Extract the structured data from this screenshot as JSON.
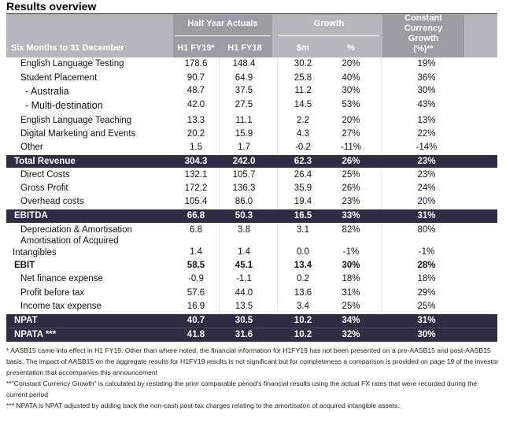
{
  "title": "Results overview",
  "header": {
    "period_label": "Six Months to 31 December",
    "group_half_year": "Half Year Actuals",
    "group_growth": "Growth",
    "group_constant_currency": [
      "Constant",
      "Currency",
      "Growth",
      "(%)**"
    ],
    "col_h1fy19": "H1 FY19*",
    "col_h1fy18": "H1 FY18",
    "col_dollar": "$m",
    "col_pct": "%"
  },
  "rows": [
    {
      "label": "English Language Testing",
      "h1fy19": "178.6",
      "h1fy18": "148.4",
      "growth_m": "30.2",
      "growth_pct": "20%",
      "cc_growth": "19%"
    },
    {
      "label": "Student Placement",
      "h1fy19": "90.7",
      "h1fy18": "64.9",
      "growth_m": "25.8",
      "growth_pct": "40%",
      "cc_growth": "36%"
    },
    {
      "label": "- Australia",
      "h1fy19": "48.7",
      "h1fy18": "37.5",
      "growth_m": "11.2",
      "growth_pct": "30%",
      "cc_growth": "30%"
    },
    {
      "label": "- Multi-destination",
      "h1fy19": "42.0",
      "h1fy18": "27.5",
      "growth_m": "14.5",
      "growth_pct": "53%",
      "cc_growth": "43%"
    },
    {
      "label": "English Language Teaching",
      "h1fy19": "13.3",
      "h1fy18": "11.1",
      "growth_m": "2.2",
      "growth_pct": "20%",
      "cc_growth": "13%"
    },
    {
      "label": "Digital Marketing and Events",
      "h1fy19": "20.2",
      "h1fy18": "15.9",
      "growth_m": "4.3",
      "growth_pct": "27%",
      "cc_growth": "22%"
    },
    {
      "label": "Other",
      "h1fy19": "1.5",
      "h1fy18": "1.7",
      "growth_m": "-0.2",
      "growth_pct": "-11%",
      "cc_growth": "-14%"
    },
    {
      "label": "Total Revenue",
      "h1fy19": "304.3",
      "h1fy18": "242.0",
      "growth_m": "62.3",
      "growth_pct": "26%",
      "cc_growth": "23%"
    },
    {
      "label": "Direct Costs",
      "h1fy19": "132.1",
      "h1fy18": "105.7",
      "growth_m": "26.4",
      "growth_pct": "25%",
      "cc_growth": "23%"
    },
    {
      "label": "Gross Profit",
      "h1fy19": "172.2",
      "h1fy18": "136.3",
      "growth_m": "35.9",
      "growth_pct": "26%",
      "cc_growth": "24%"
    },
    {
      "label": "Overhead costs",
      "h1fy19": "105.4",
      "h1fy18": "86.0",
      "growth_m": "19.4",
      "growth_pct": "23%",
      "cc_growth": "20%"
    },
    {
      "label": "EBITDA",
      "h1fy19": "66.8",
      "h1fy18": "50.3",
      "growth_m": "16.5",
      "growth_pct": "33%",
      "cc_growth": "31%"
    },
    {
      "label": "Depreciation & Amortisation",
      "h1fy19": "6.8",
      "h1fy18": "3.8",
      "growth_m": "3.1",
      "growth_pct": "82%",
      "cc_growth": "80%"
    },
    {
      "label_line1": "Amortisation of Acquired",
      "label_line2": "Intangibles",
      "h1fy19": "1.4",
      "h1fy18": "1.4",
      "growth_m": "0.0",
      "growth_pct": "-1%",
      "cc_growth": "-1%"
    },
    {
      "label": "EBIT",
      "h1fy19": "58.5",
      "h1fy18": "45.1",
      "growth_m": "13.4",
      "growth_pct": "30%",
      "cc_growth": "28%"
    },
    {
      "label": "Net finance expense",
      "h1fy19": "-0.9",
      "h1fy18": "-1.1",
      "growth_m": "0.2",
      "growth_pct": "18%",
      "cc_growth": "18%"
    },
    {
      "label": "Profit before tax",
      "h1fy19": "57.6",
      "h1fy18": "44.0",
      "growth_m": "13.6",
      "growth_pct": "31%",
      "cc_growth": "29%"
    },
    {
      "label": "Income tax expense",
      "h1fy19": "16.9",
      "h1fy18": "13.5",
      "growth_m": "3.4",
      "growth_pct": "25%",
      "cc_growth": "25%"
    },
    {
      "label": "NPAT",
      "h1fy19": "40.7",
      "h1fy18": "30.5",
      "growth_m": "10.2",
      "growth_pct": "34%",
      "cc_growth": "31%"
    },
    {
      "label": "NPATA ***",
      "h1fy19": "41.8",
      "h1fy18": "31.6",
      "growth_m": "10.2",
      "growth_pct": "32%",
      "cc_growth": "30%"
    }
  ],
  "footnotes": [
    "* AASB15 came into effect in H1 FY19.  Other than where noted, the financial information for H1FY19 has not been presented on a pre-AASB15 and post-AASB15 basis.  The impact of AASB15 on the aggregate results for H1FY19 results is not significant but for completeness a comparison is provided on page 19 of the investor presentation that accompanies this announcement",
    "**\"Constant Currency Growth\" is calculated by restating the prior comparable period's financial results using the actual FX rates that were recorded during the current period",
    "*** NPATA is NPAT adjusted by adding back the non-cash post-tax charges relating to the amortisaton of acquired intangible assets."
  ],
  "colors": {
    "header_light": "#b7b6be",
    "header_dark": "#9d9ca5",
    "highlight_row": "#2e2d44"
  }
}
